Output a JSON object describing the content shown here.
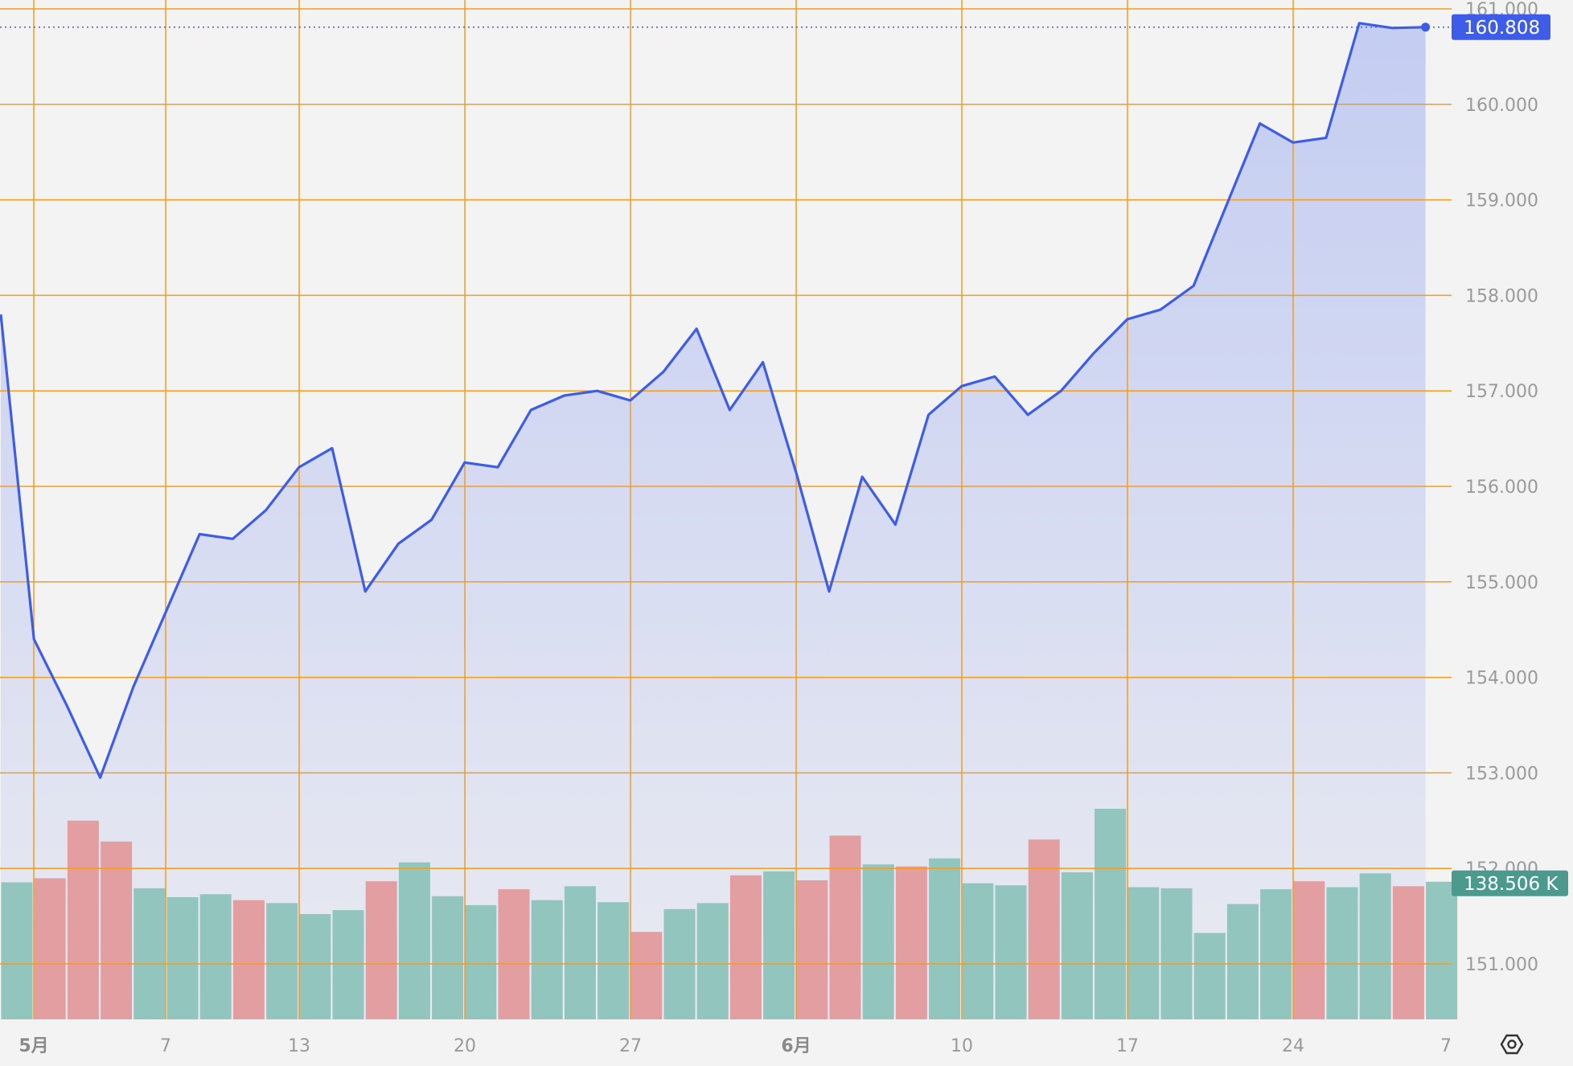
{
  "chart_data": {
    "type": "area",
    "title": "",
    "xlabel": "",
    "ylabel": "",
    "ylim": [
      150.4,
      161.1
    ],
    "grid": true,
    "x_tick_labels": [
      "5月",
      "7",
      "13",
      "20",
      "27",
      "6月",
      "10",
      "17",
      "24",
      "7"
    ],
    "y_tick_labels": [
      "161.000",
      "160.000",
      "159.000",
      "158.000",
      "157.000",
      "156.000",
      "155.000",
      "154.000",
      "153.000",
      "152.000",
      "151.000"
    ],
    "y_ticks": [
      161,
      160,
      159,
      158,
      157,
      156,
      155,
      154,
      153,
      152,
      151
    ],
    "series": [
      {
        "values": [
          157.8,
          154.4,
          153.7,
          152.95,
          153.9,
          154.7,
          155.5,
          155.45,
          155.75,
          156.2,
          156.4,
          154.9,
          155.4,
          155.65,
          156.25,
          156.2,
          156.8,
          156.95,
          157.0,
          156.9,
          157.2,
          157.65,
          156.8,
          157.3,
          156.15,
          154.9,
          156.1,
          155.6,
          156.75,
          157.05,
          157.15,
          156.75,
          157.0,
          157.4,
          157.75,
          157.85,
          158.1,
          158.95,
          159.8,
          159.6,
          159.65,
          160.85,
          160.8,
          160.808
        ]
      }
    ],
    "volume": {
      "values": [
        138,
        142,
        200,
        179,
        132,
        123,
        126,
        120,
        117,
        106,
        110,
        139,
        158,
        124,
        115,
        131,
        120,
        134,
        118,
        88,
        111,
        117,
        145,
        149,
        140,
        185,
        156,
        154,
        162,
        137,
        135,
        181,
        148,
        212,
        133,
        132,
        87,
        116,
        131,
        139,
        133,
        147,
        134,
        138.506
      ],
      "direction": [
        "up",
        "down",
        "down",
        "down",
        "up",
        "up",
        "up",
        "down",
        "up",
        "up",
        "up",
        "down",
        "up",
        "up",
        "up",
        "down",
        "up",
        "up",
        "up",
        "down",
        "up",
        "up",
        "down",
        "up",
        "down",
        "down",
        "up",
        "down",
        "up",
        "up",
        "up",
        "down",
        "up",
        "up",
        "up",
        "up",
        "up",
        "up",
        "up",
        "down",
        "up",
        "up",
        "down",
        "up"
      ]
    },
    "last_price_label": "160.808",
    "last_volume_label": "138.506 K",
    "colors": {
      "line": "#3d5de8",
      "area_top": "#c4cdf2",
      "area_bottom": "#e9eaf1",
      "grid": "#f39c1e",
      "volume_up": "#8cc3bb",
      "volume_down": "#e39a9c",
      "price_badge": "#3d5de8",
      "volume_badge": "#4a9a8e"
    }
  }
}
